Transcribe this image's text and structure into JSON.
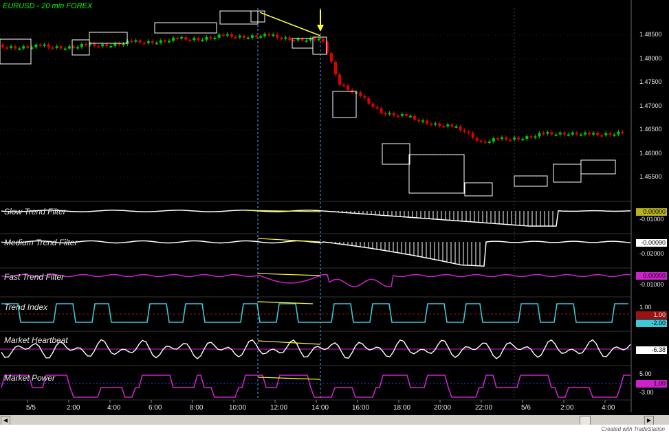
{
  "symbol_title": "EURUSD - 20 min  FOREX",
  "price_axis": [
    "1.48500",
    "1.48000",
    "1.47500",
    "1.47000",
    "1.46500",
    "1.46000",
    "1.45500"
  ],
  "time_axis": [
    "5/5",
    "2:00",
    "4:00",
    "6:00",
    "8:00",
    "10:00",
    "12:00",
    "14:00",
    "16:00",
    "18:00",
    "20:00",
    "22:00",
    "5/6",
    "2:00",
    "4:00"
  ],
  "panels": {
    "slow": {
      "title": "Slow Trend Filter",
      "value": "0.00000",
      "axis": "-0.01000",
      "value_color": "#b8b020"
    },
    "medium": {
      "title": "Medium Trend Filter",
      "value": "-0.00090",
      "axis": "-0.02000"
    },
    "fast": {
      "title": "Fast Trend Filter",
      "value": "0.00000",
      "axis": "-0.01000",
      "value_color": "#cc22cc"
    },
    "trend_index": {
      "title": "Trend Index",
      "top": "1.00",
      "mid": "1.00",
      "bottom": "-2.00",
      "top_color": "#a01010",
      "bottom_color": "#3cc8d8"
    },
    "heartbeat": {
      "title": "Market Heartbeat",
      "value": "-6.38"
    },
    "power": {
      "title": "Market Power",
      "top": "5.00",
      "mid": "1.00",
      "bottom": "-3.00",
      "value_color": "#cc22cc"
    }
  },
  "footer_text": "Created with TradeStation",
  "colors": {
    "up": "#00cc00",
    "down": "#dd0000",
    "trend_line": "#ffff33",
    "cursor": "#5aa0ff",
    "cyan": "#3cc8d8",
    "magenta": "#cc22cc"
  }
}
